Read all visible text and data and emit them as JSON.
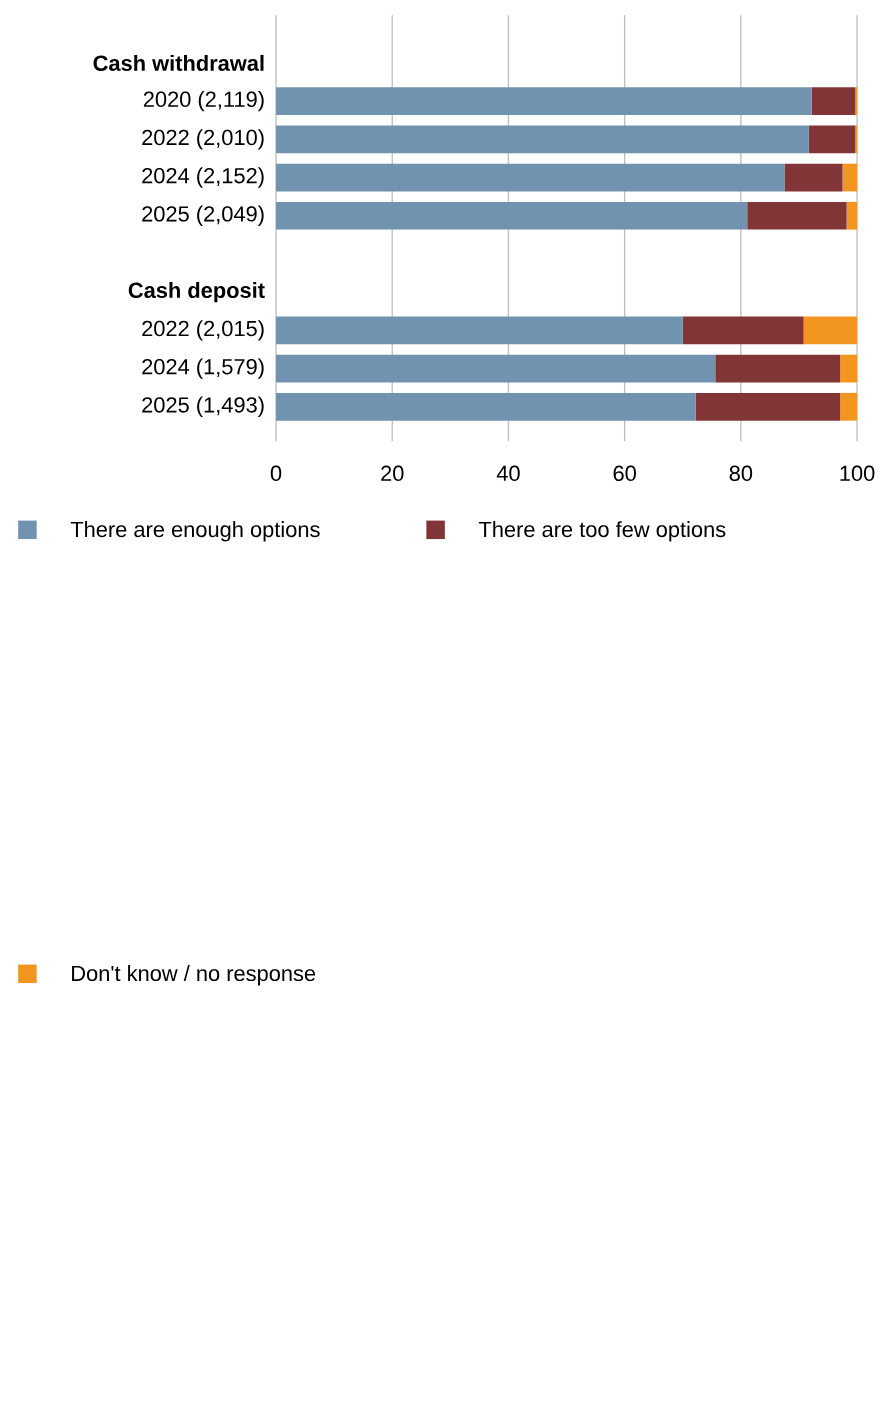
{
  "chart_data": {
    "type": "bar",
    "orientation": "horizontal",
    "stacked": true,
    "categories": [
      "Cash withdrawal",
      "2020 (2,119)",
      "2022 (2,010)",
      "2024 (2,152)",
      "2025 (2,049)",
      null,
      "Cash deposit",
      "2022 (2,015)",
      "2024 (1,579)",
      "2025 (1,493)"
    ],
    "series": [
      {
        "name": "There are enough options",
        "color": "#7193b0",
        "values": [
          null,
          92.2,
          91.7,
          87.5,
          81.1,
          null,
          null,
          70.0,
          75.6,
          72.2
        ]
      },
      {
        "name": "There are too few options",
        "color": "#823537",
        "values": [
          null,
          7.5,
          8.0,
          10.0,
          17.1,
          null,
          null,
          20.8,
          21.5,
          24.9
        ]
      },
      {
        "name": "Don't know / no response",
        "color": "#f39621",
        "values": [
          null,
          0.3,
          0.3,
          2.5,
          1.8,
          null,
          null,
          9.2,
          2.9,
          2.9
        ]
      }
    ],
    "xlim": [
      0,
      100
    ],
    "xticks": [
      0,
      20,
      40,
      60,
      80,
      100
    ],
    "grid": "x",
    "legend": "bottom left"
  }
}
